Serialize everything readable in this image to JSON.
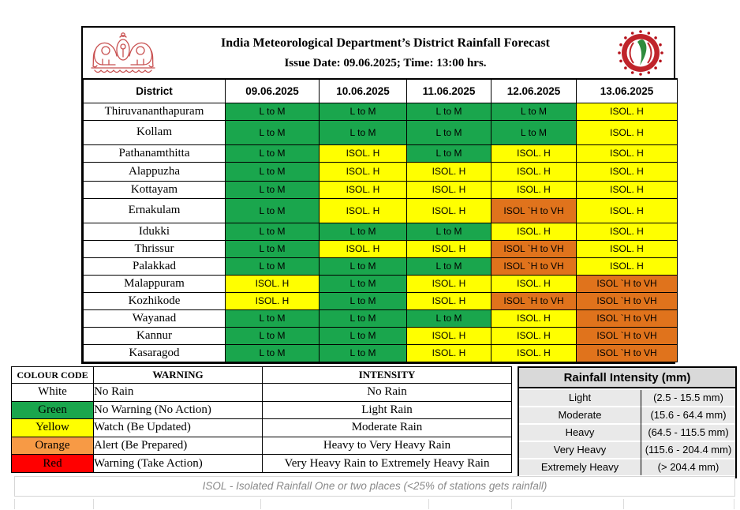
{
  "header": {
    "title": "India Meteorological Department’s District Rainfall Forecast",
    "issue_line": "Issue Date: 09.06.2025; Time: 13:00 hrs.",
    "left_logo": "kerala-government-emblem",
    "right_logo": "imd-round-seal"
  },
  "colors": {
    "green": "#1AA64D",
    "yellow": "#FFFF00",
    "orange": "#E0731C",
    "legend_orange": "#F79A45",
    "red": "#FF0000",
    "white": "#FFFFFF"
  },
  "forecast_table": {
    "columns": [
      "District",
      "09.06.2025",
      "10.06.2025",
      "11.06.2025",
      "12.06.2025",
      "13.06.2025"
    ],
    "rows": [
      {
        "district": "Thiruvananthapuram",
        "cells": [
          {
            "text": "L to M",
            "level": "green"
          },
          {
            "text": "L to M",
            "level": "green"
          },
          {
            "text": "L to M",
            "level": "green"
          },
          {
            "text": "L to M",
            "level": "green"
          },
          {
            "text": "ISOL. H",
            "level": "yellow"
          }
        ]
      },
      {
        "district": "Kollam",
        "cells": [
          {
            "text": "L to M",
            "level": "green"
          },
          {
            "text": "L to M",
            "level": "green"
          },
          {
            "text": "L to M",
            "level": "green"
          },
          {
            "text": "L to M",
            "level": "green"
          },
          {
            "text": "ISOL. H",
            "level": "yellow"
          }
        ]
      },
      {
        "district": "Pathanamthitta",
        "cells": [
          {
            "text": "L to M",
            "level": "green"
          },
          {
            "text": "ISOL. H",
            "level": "yellow"
          },
          {
            "text": "L to M",
            "level": "green"
          },
          {
            "text": "ISOL. H",
            "level": "yellow"
          },
          {
            "text": "ISOL. H",
            "level": "yellow"
          }
        ]
      },
      {
        "district": "Alappuzha",
        "cells": [
          {
            "text": "L to M",
            "level": "green"
          },
          {
            "text": "ISOL. H",
            "level": "yellow"
          },
          {
            "text": "ISOL. H",
            "level": "yellow"
          },
          {
            "text": "ISOL. H",
            "level": "yellow"
          },
          {
            "text": "ISOL. H",
            "level": "yellow"
          }
        ]
      },
      {
        "district": "Kottayam",
        "cells": [
          {
            "text": "L to M",
            "level": "green"
          },
          {
            "text": "ISOL. H",
            "level": "yellow"
          },
          {
            "text": "ISOL. H",
            "level": "yellow"
          },
          {
            "text": "ISOL. H",
            "level": "yellow"
          },
          {
            "text": "ISOL. H",
            "level": "yellow"
          }
        ]
      },
      {
        "district": "Ernakulam",
        "cells": [
          {
            "text": "L to M",
            "level": "green"
          },
          {
            "text": "ISOL. H",
            "level": "yellow"
          },
          {
            "text": "ISOL. H",
            "level": "yellow"
          },
          {
            "text": "ISOL `H to VH",
            "level": "orange"
          },
          {
            "text": "ISOL. H",
            "level": "yellow"
          }
        ]
      },
      {
        "district": "Idukki",
        "cells": [
          {
            "text": "L to M",
            "level": "green"
          },
          {
            "text": "L to M",
            "level": "green"
          },
          {
            "text": "L to M",
            "level": "green"
          },
          {
            "text": "ISOL. H",
            "level": "yellow"
          },
          {
            "text": "ISOL. H",
            "level": "yellow"
          }
        ]
      },
      {
        "district": "Thrissur",
        "cells": [
          {
            "text": "L to M",
            "level": "green"
          },
          {
            "text": "ISOL. H",
            "level": "yellow"
          },
          {
            "text": "ISOL. H",
            "level": "yellow"
          },
          {
            "text": "ISOL `H to VH",
            "level": "orange"
          },
          {
            "text": "ISOL. H",
            "level": "yellow"
          }
        ]
      },
      {
        "district": "Palakkad",
        "cells": [
          {
            "text": "L to M",
            "level": "green"
          },
          {
            "text": "L to M",
            "level": "green"
          },
          {
            "text": "L to M",
            "level": "green"
          },
          {
            "text": "ISOL `H to VH",
            "level": "orange"
          },
          {
            "text": "ISOL. H",
            "level": "yellow"
          }
        ]
      },
      {
        "district": "Malappuram",
        "cells": [
          {
            "text": "ISOL. H",
            "level": "yellow"
          },
          {
            "text": "L to M",
            "level": "green"
          },
          {
            "text": "ISOL. H",
            "level": "yellow"
          },
          {
            "text": "ISOL. H",
            "level": "yellow"
          },
          {
            "text": "ISOL `H to VH",
            "level": "orange"
          }
        ]
      },
      {
        "district": "Kozhikode",
        "cells": [
          {
            "text": "ISOL. H",
            "level": "yellow"
          },
          {
            "text": "L to M",
            "level": "green"
          },
          {
            "text": "ISOL. H",
            "level": "yellow"
          },
          {
            "text": "ISOL `H to VH",
            "level": "orange"
          },
          {
            "text": "ISOL `H to VH",
            "level": "orange"
          }
        ]
      },
      {
        "district": "Wayanad",
        "cells": [
          {
            "text": "L to M",
            "level": "green"
          },
          {
            "text": "L to M",
            "level": "green"
          },
          {
            "text": "L to M",
            "level": "green"
          },
          {
            "text": "ISOL. H",
            "level": "yellow"
          },
          {
            "text": "ISOL `H to VH",
            "level": "orange"
          }
        ]
      },
      {
        "district": "Kannur",
        "cells": [
          {
            "text": "L to M",
            "level": "green"
          },
          {
            "text": "L to M",
            "level": "green"
          },
          {
            "text": "ISOL. H",
            "level": "yellow"
          },
          {
            "text": "ISOL. H",
            "level": "yellow"
          },
          {
            "text": "ISOL `H to VH",
            "level": "orange"
          }
        ]
      },
      {
        "district": "Kasaragod",
        "cells": [
          {
            "text": "L to M",
            "level": "green"
          },
          {
            "text": "L to M",
            "level": "green"
          },
          {
            "text": "ISOL. H",
            "level": "yellow"
          },
          {
            "text": "ISOL. H",
            "level": "yellow"
          },
          {
            "text": "ISOL `H to VH",
            "level": "orange"
          }
        ]
      }
    ]
  },
  "colour_code_table": {
    "headers": [
      "COLOUR CODE",
      "WARNING",
      "INTENSITY"
    ],
    "rows": [
      {
        "colour": "White",
        "swatch": "#FFFFFF",
        "warning": "No Rain",
        "intensity": "No Rain"
      },
      {
        "colour": "Green",
        "swatch": "#1AA64D",
        "warning": "No Warning (No Action)",
        "intensity": "Light Rain"
      },
      {
        "colour": "Yellow",
        "swatch": "#FFFF00",
        "warning": "Watch (Be Updated)",
        "intensity": "Moderate Rain"
      },
      {
        "colour": "Orange",
        "swatch": "#F79A45",
        "warning": "Alert (Be Prepared)",
        "intensity": "Heavy to Very Heavy Rain"
      },
      {
        "colour": "Red",
        "swatch": "#FF0000",
        "warning": "Warning (Take Action)",
        "intensity": "Very Heavy Rain to Extremely Heavy Rain"
      }
    ]
  },
  "intensity_table": {
    "title": "Rainfall Intensity (mm)",
    "rows": [
      {
        "label": "Light",
        "range": "(2.5 - 15.5 mm)"
      },
      {
        "label": "Moderate",
        "range": "(15.6 - 64.4 mm)"
      },
      {
        "label": "Heavy",
        "range": "(64.5 - 115.5 mm)"
      },
      {
        "label": "Very Heavy",
        "range": "(115.6 - 204.4 mm)"
      },
      {
        "label": "Extremely Heavy",
        "range": "(> 204.4 mm)"
      }
    ]
  },
  "footnote": "ISOL - Isolated Rainfall One or two places (<25% of stations gets rainfall)"
}
